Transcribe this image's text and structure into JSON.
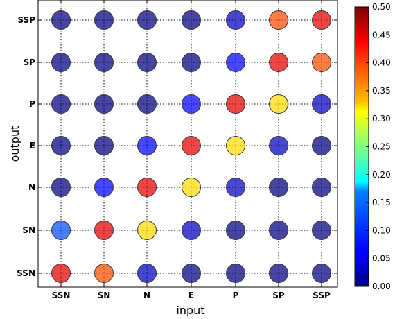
{
  "chart_data": {
    "type": "scatter",
    "xlabel": "input",
    "ylabel": "output",
    "x_categories": [
      "SSN",
      "SN",
      "N",
      "E",
      "P",
      "SP",
      "SSP"
    ],
    "y_categories": [
      "SSN",
      "SN",
      "N",
      "E",
      "P",
      "SP",
      "SSP"
    ],
    "colorbar": {
      "min": 0.0,
      "max": 0.5,
      "ticks": [
        "0.00",
        "0.05",
        "0.10",
        "0.15",
        "0.20",
        "0.25",
        "0.30",
        "0.35",
        "0.40",
        "0.45",
        "0.50"
      ],
      "colormap": "jet"
    },
    "grid": true,
    "matrix": [
      [
        0.45,
        0.4,
        0.03,
        0.0,
        0.0,
        0.0,
        0.0
      ],
      [
        0.1,
        0.45,
        0.33,
        0.03,
        0.0,
        0.0,
        0.0
      ],
      [
        0.0,
        0.06,
        0.45,
        0.33,
        0.03,
        0.0,
        0.0
      ],
      [
        0.0,
        0.0,
        0.06,
        0.45,
        0.33,
        0.03,
        0.0
      ],
      [
        0.0,
        0.0,
        0.0,
        0.06,
        0.45,
        0.33,
        0.03
      ],
      [
        0.0,
        0.0,
        0.0,
        0.0,
        0.06,
        0.45,
        0.4
      ],
      [
        0.0,
        0.0,
        0.0,
        0.0,
        0.03,
        0.4,
        0.45
      ]
    ]
  }
}
